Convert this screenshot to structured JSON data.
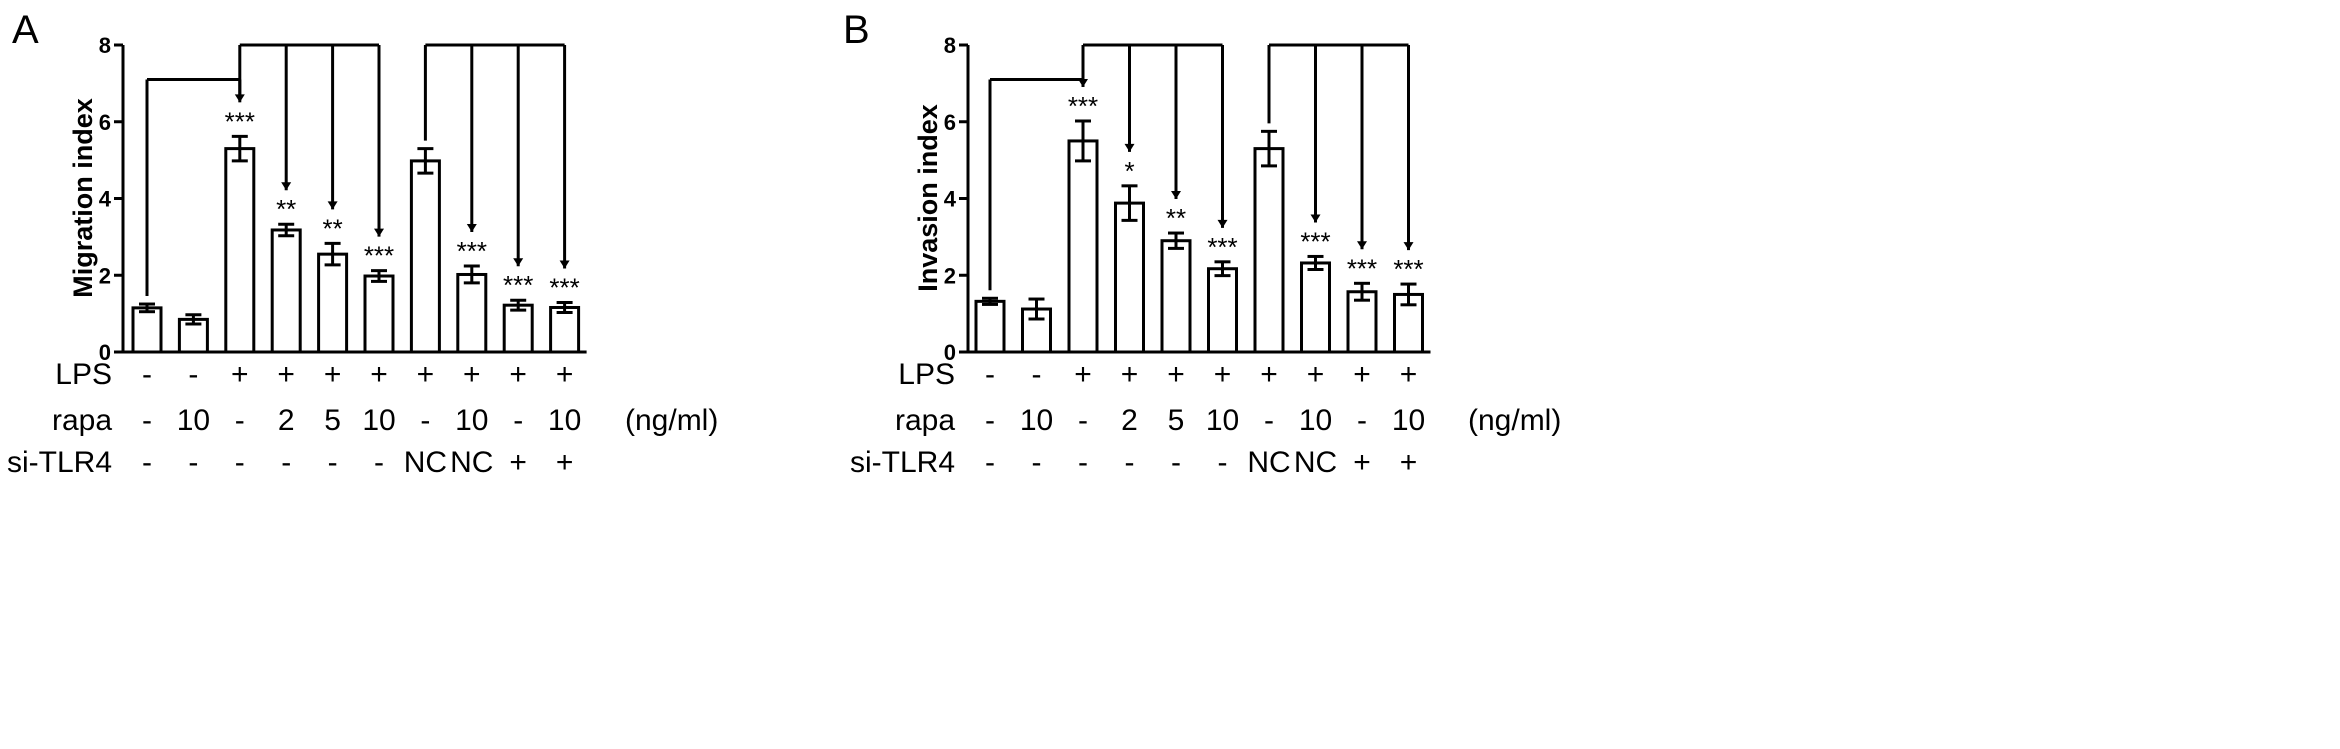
{
  "chart_data": [
    {
      "type": "bar",
      "panel_label": "A",
      "ylabel": "Migration index",
      "ylim": [
        0,
        8
      ],
      "yticks": [
        0,
        2,
        4,
        6,
        8
      ],
      "values": [
        1.15,
        0.85,
        5.3,
        3.18,
        2.55,
        1.98,
        4.98,
        2.02,
        1.22,
        1.16
      ],
      "errors": [
        0.1,
        0.12,
        0.32,
        0.15,
        0.28,
        0.14,
        0.32,
        0.22,
        0.13,
        0.13
      ],
      "significance": [
        "",
        "",
        "***",
        "**",
        "**",
        "***",
        "",
        "***",
        "***",
        "***"
      ],
      "bar_color": "#ffffff",
      "grid": false,
      "brackets": [
        {
          "from": 0,
          "to": [
            2
          ],
          "y": 7.1
        },
        {
          "from": 2,
          "to": [
            3,
            4,
            5
          ],
          "y": 8.0
        },
        {
          "from": 6,
          "to": [
            7,
            8,
            9
          ],
          "y": 8.0
        }
      ],
      "conditions": {
        "row_labels": [
          "LPS",
          "rapa",
          "si-TLR4"
        ],
        "unit": "(ng/ml)",
        "rows": [
          [
            "-",
            "-",
            "+",
            "+",
            "+",
            "+",
            "+",
            "+",
            "+",
            "+"
          ],
          [
            "-",
            "10",
            "-",
            "2",
            "5",
            "10",
            "-",
            "10",
            "-",
            "10"
          ],
          [
            "-",
            "-",
            "-",
            "-",
            "-",
            "-",
            "NC",
            "NC",
            "+",
            "+"
          ]
        ]
      }
    },
    {
      "type": "bar",
      "panel_label": "B",
      "ylabel": "Invasion index",
      "ylim": [
        0,
        8
      ],
      "yticks": [
        0,
        2,
        4,
        6,
        8
      ],
      "values": [
        1.32,
        1.12,
        5.5,
        3.88,
        2.9,
        2.17,
        5.3,
        2.32,
        1.57,
        1.5
      ],
      "errors": [
        0.08,
        0.26,
        0.52,
        0.45,
        0.2,
        0.18,
        0.45,
        0.17,
        0.22,
        0.27
      ],
      "significance": [
        "",
        "",
        "***",
        "*",
        "**",
        "***",
        "",
        "***",
        "***",
        "***"
      ],
      "bar_color": "#ffffff",
      "grid": false,
      "brackets": [
        {
          "from": 0,
          "to": [
            2
          ],
          "y": 7.1
        },
        {
          "from": 2,
          "to": [
            3,
            4,
            5
          ],
          "y": 8.0
        },
        {
          "from": 6,
          "to": [
            7,
            8,
            9
          ],
          "y": 8.0
        }
      ],
      "conditions": {
        "row_labels": [
          "LPS",
          "rapa",
          "si-TLR4"
        ],
        "unit": "(ng/ml)",
        "rows": [
          [
            "-",
            "-",
            "+",
            "+",
            "+",
            "+",
            "+",
            "+",
            "+",
            "+"
          ],
          [
            "-",
            "10",
            "-",
            "2",
            "5",
            "10",
            "-",
            "10",
            "-",
            "10"
          ],
          [
            "-",
            "-",
            "-",
            "-",
            "-",
            "-",
            "NC",
            "NC",
            "+",
            "+"
          ]
        ]
      }
    }
  ]
}
